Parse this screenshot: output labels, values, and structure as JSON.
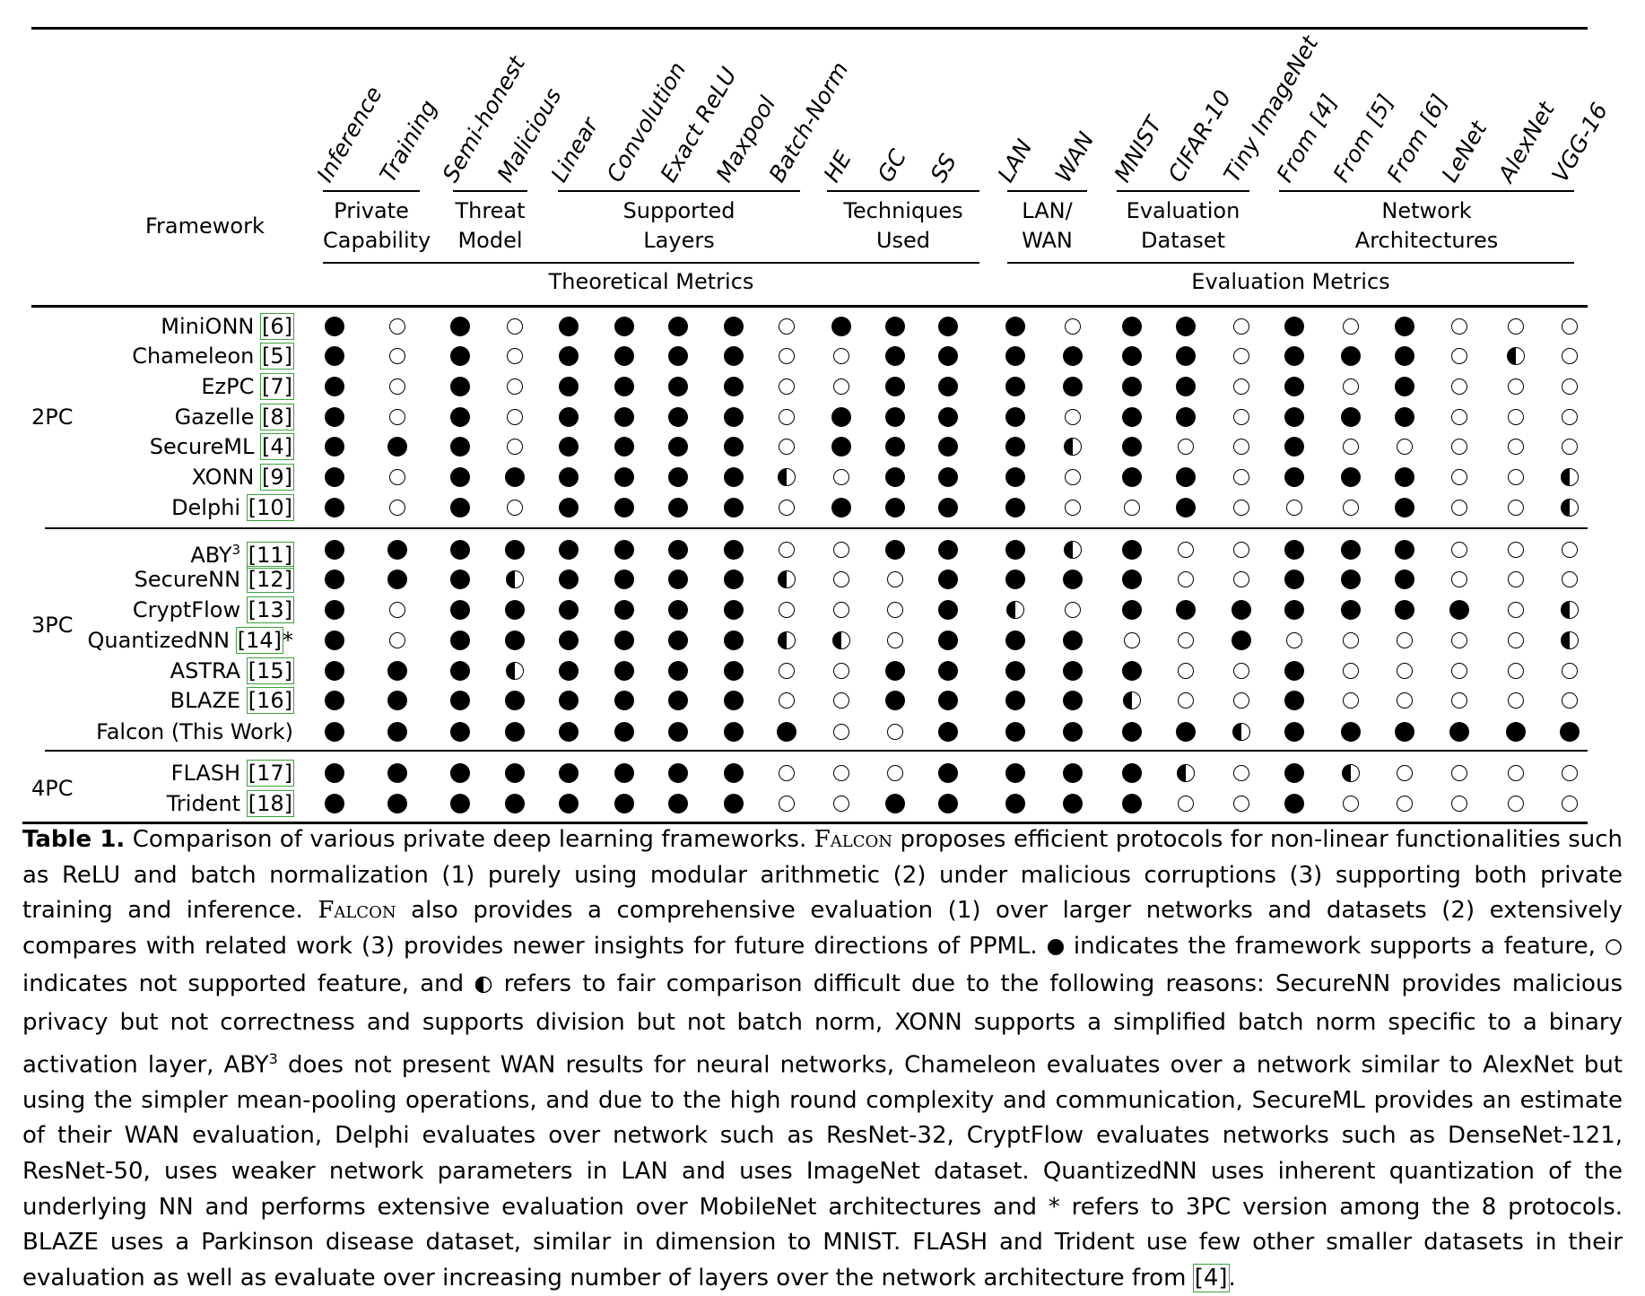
{
  "framework_header": "Framework",
  "columns": [
    "Inference",
    "Training",
    "Semi-honest",
    "Malicious",
    "Linear",
    "Convolution",
    "Exact ReLU",
    "Maxpool",
    "Batch-Norm",
    "HE",
    "GC",
    "SS",
    "LAN",
    "WAN",
    "MNIST",
    "CIFAR-10",
    "Tiny ImageNet",
    "From [4]",
    "From [5]",
    "From [6]",
    "LeNet",
    "AlexNet",
    "VGG-16"
  ],
  "groups": [
    {
      "line1": "Private",
      "line2": "Capability",
      "from": 0,
      "to": 1
    },
    {
      "line1": "Threat",
      "line2": "Model",
      "from": 2,
      "to": 3
    },
    {
      "line1": "Supported",
      "line2": "Layers",
      "from": 4,
      "to": 8
    },
    {
      "line1": "Techniques",
      "line2": "Used",
      "from": 9,
      "to": 11
    },
    {
      "line1": "LAN/",
      "line2": "WAN",
      "from": 12,
      "to": 13
    },
    {
      "line1": "Evaluation",
      "line2": "Dataset",
      "from": 14,
      "to": 16
    },
    {
      "line1": "Network",
      "line2": "Architectures",
      "from": 17,
      "to": 22
    }
  ],
  "supergroups": [
    {
      "label": "Theoretical Metrics",
      "from": 0,
      "to": 11
    },
    {
      "label": "Evaluation Metrics",
      "from": 12,
      "to": 22
    }
  ],
  "sections": [
    {
      "label": "2PC",
      "rows": [
        {
          "name": "MiniONN",
          "cite": "[6]",
          "values": "FNFNFFFFNFFFFNFFNFNFNNN"
        },
        {
          "name": "Chameleon",
          "cite": "[5]",
          "values": "FNFNFFFFNNFFFFFFNFFFNHN"
        },
        {
          "name": "EzPC",
          "cite": "[7]",
          "values": "FNFNFFFFNNFFFFFFNFNFNNN"
        },
        {
          "name": "Gazelle",
          "cite": "[8]",
          "values": "FNFNFFFFNFFFFNFFNFFFNNN"
        },
        {
          "name": "SecureML",
          "cite": "[4]",
          "values": "FFFNFFFFNFFFFHFNNFNNNNN"
        },
        {
          "name": "XONN",
          "cite": "[9]",
          "values": "FNFFFFFFHNFFFNFFNFFFNNH"
        },
        {
          "name": "Delphi",
          "cite": "[10]",
          "values": "FNFNFFFFNFFFFNNFNNNFNNH"
        }
      ]
    },
    {
      "label": "3PC",
      "rows": [
        {
          "name": "ABY",
          "sup": "3",
          "cite": "[11]",
          "values": "FFFFFFFFNNFFFHFNNFFFNNN"
        },
        {
          "name": "SecureNN",
          "cite": "[12]",
          "values": "FFFHFFFFHNNFFFFNNFFFNNN"
        },
        {
          "name": "CryptFlow",
          "cite": "[13]",
          "values": "FNFFFFFFNNNFHNFFFFFFFNH"
        },
        {
          "name": "QuantizedNN",
          "cite": "[14]",
          "suffix": "*",
          "values": "FNFFFFFFHHNFFFNNFNNNNNH"
        },
        {
          "name": "ASTRA",
          "cite": "[15]",
          "values": "FFFHFFFFNNFFFFFNNFNNNNN"
        },
        {
          "name": "BLAZE",
          "cite": "[16]",
          "values": "FFFFFFFFNNFFFFHNNFNNNNN"
        },
        {
          "name": "Falcon (This Work)",
          "cite": "",
          "values": "FFFFFFFFFNNFFFFFHFFFFFF"
        }
      ]
    },
    {
      "label": "4PC",
      "rows": [
        {
          "name": "FLASH",
          "cite": "[17]",
          "values": "FFFFFFFFNNNFFFFHNFHNNNN"
        },
        {
          "name": "Trident",
          "cite": "[18]",
          "values": "FFFFFFFFNNFFFFFNNFNNNNN"
        }
      ]
    }
  ],
  "caption": {
    "label": "Table 1.",
    "p1": "Comparison of various private deep learning frameworks.",
    "falcon": "Falcon",
    "p2": "proposes efficient protocols for non-linear functionalities such as ReLU and batch normalization (1) purely using modular arithmetic (2) under malicious corruptions (3) supporting both private training and inference.",
    "p3": "also provides a comprehensive evaluation (1) over larger networks and datasets (2) extensively compares with related work (3) provides newer insights for future directions of PPML.",
    "p4": "indicates the framework supports a feature,",
    "p5": "indicates not supported feature, and",
    "p6": "refers to fair comparison difficult due to the following reasons: SecureNN provides malicious privacy but not correctness and supports division but not batch norm, XONN supports a simplified batch norm specific to a binary activation layer, ABY",
    "p6_sup": "3",
    "p7": "does not present WAN results for neural networks, Chameleon evaluates over a network similar to AlexNet but using the simpler mean-pooling operations, and due to the high round complexity and communication, SecureML provides an estimate of their WAN evaluation, Delphi evaluates over network such as ResNet-32, CryptFlow evaluates networks such as DenseNet-121, ResNet-50, uses weaker network parameters in LAN and uses ImageNet dataset. QuantizedNN uses inherent quantization of the underlying NN and performs extensive evaluation over MobileNet architectures and * refers to 3PC version among the 8 protocols. BLAZE uses a Parkinson disease dataset, similar in dimension to MNIST. FLASH and Trident use few other smaller datasets in their evaluation as well as evaluate over increasing number of layers over the network architecture from",
    "p7_cite": "[4]",
    "p8": "."
  }
}
